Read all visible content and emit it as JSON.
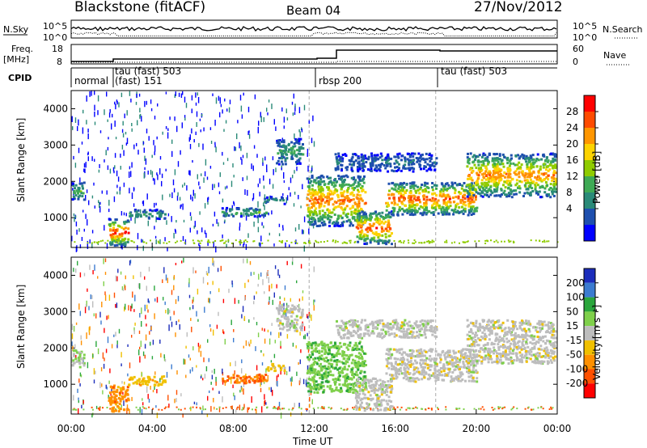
{
  "header": {
    "station": "Blackstone (fitACF)",
    "beam": "Beam 04",
    "date": "27/Nov/2012"
  },
  "noise_panel": {
    "left_label": "N.Sky",
    "right_label": "N.Search",
    "tick_top": "10^5",
    "tick_bottom": "10^0"
  },
  "freq_panel": {
    "left_label": "Freq.",
    "left_unit": "[MHz]",
    "right_label": "Nave",
    "left_ticks": [
      "18",
      "8"
    ],
    "right_ticks": [
      "60",
      "0"
    ]
  },
  "cpid": {
    "label": "CPID",
    "modes": [
      {
        "name": "normal",
        "start": 0.0,
        "end": 2.25
      },
      {
        "name": "tau (fast) 503",
        "start": 2.25,
        "end": 11.75
      },
      {
        "name": "(fast) 151",
        "start": 2.25,
        "end": 11.75
      },
      {
        "name": "rbsp 200",
        "start": 11.75,
        "end": 18.0
      },
      {
        "name": "tau (fast) 503",
        "start": 18.0,
        "end": 24.0
      }
    ]
  },
  "power_colorbar": {
    "label": "Power [dB]",
    "ticks": [
      "28",
      "24",
      "20",
      "16",
      "12",
      "8",
      "4"
    ],
    "colors": [
      "#ff0000",
      "#ff4b00",
      "#ff9600",
      "#fdd300",
      "#8fcc00",
      "#3faa55",
      "#2a8a78",
      "#1e4fae",
      "#0000ff"
    ]
  },
  "velocity_colorbar": {
    "label": "Velocity [m s⁻¹]",
    "ticks": [
      "200",
      "100",
      "50",
      "15",
      "-15",
      "-50",
      "-100",
      "-200"
    ],
    "colors": [
      "#1c2dbb",
      "#3b7bd0",
      "#2aa63c",
      "#7fd04b",
      "#bdbdbd",
      "#f0c000",
      "#ff9000",
      "#ff5000",
      "#ff0000"
    ]
  },
  "xaxis": {
    "label": "Time UT",
    "ticks": [
      "00:00",
      "04:00",
      "08:00",
      "12:00",
      "16:00",
      "20:00",
      "00:00"
    ]
  },
  "chart_data": [
    {
      "type": "heatmap",
      "name": "power",
      "ylabel": "Slant Range [km]",
      "xlim": [
        0,
        24
      ],
      "ylim": [
        180,
        4500
      ],
      "yticks": [
        "4000",
        "3000",
        "2000",
        "1000"
      ],
      "regions": [
        {
          "x0": 0.0,
          "x1": 0.6,
          "y0": 1500,
          "y1": 2000,
          "level": 0.4
        },
        {
          "x0": 1.8,
          "x1": 2.8,
          "y0": 250,
          "y1": 1000,
          "level": 0.95
        },
        {
          "x0": 2.8,
          "x1": 4.6,
          "y0": 1000,
          "y1": 1250,
          "level": 0.35
        },
        {
          "x0": 7.4,
          "x1": 9.6,
          "y0": 1050,
          "y1": 1300,
          "level": 0.4
        },
        {
          "x0": 9.5,
          "x1": 10.5,
          "y0": 1400,
          "y1": 1600,
          "level": 0.3
        },
        {
          "x0": 10.1,
          "x1": 11.4,
          "y0": 2500,
          "y1": 3200,
          "level": 0.35
        },
        {
          "x0": 11.6,
          "x1": 14.5,
          "y0": 800,
          "y1": 2200,
          "level": 0.85
        },
        {
          "x0": 14.0,
          "x1": 15.8,
          "y0": 300,
          "y1": 1200,
          "level": 0.9
        },
        {
          "x0": 15.5,
          "x1": 20.0,
          "y0": 1100,
          "y1": 2000,
          "level": 0.9
        },
        {
          "x0": 19.5,
          "x1": 23.9,
          "y0": 1600,
          "y1": 2800,
          "level": 0.8
        },
        {
          "x0": 13.0,
          "x1": 18.0,
          "y0": 2300,
          "y1": 2800,
          "level": 0.2
        }
      ]
    },
    {
      "type": "heatmap",
      "name": "velocity",
      "ylabel": "Slant Range [km]",
      "xlim": [
        0,
        24
      ],
      "ylim": [
        180,
        4500
      ],
      "yticks": [
        "4000",
        "3000",
        "2000",
        "1000"
      ],
      "regions": [
        {
          "x0": 0.0,
          "x1": 0.6,
          "y0": 1500,
          "y1": 2000,
          "level": 0.1
        },
        {
          "x0": 1.8,
          "x1": 2.8,
          "y0": 250,
          "y1": 1000,
          "level": -0.5
        },
        {
          "x0": 2.8,
          "x1": 4.6,
          "y0": 1000,
          "y1": 1250,
          "level": -0.3
        },
        {
          "x0": 7.4,
          "x1": 9.6,
          "y0": 1050,
          "y1": 1300,
          "level": -0.6
        },
        {
          "x0": 9.5,
          "x1": 10.5,
          "y0": 1400,
          "y1": 1600,
          "level": -0.2
        },
        {
          "x0": 10.1,
          "x1": 11.4,
          "y0": 2500,
          "y1": 3200,
          "level": 0.0
        },
        {
          "x0": 11.6,
          "x1": 14.5,
          "y0": 800,
          "y1": 2200,
          "level": 0.3
        },
        {
          "x0": 14.0,
          "x1": 15.8,
          "y0": 300,
          "y1": 1200,
          "level": 0.0
        },
        {
          "x0": 15.5,
          "x1": 20.0,
          "y0": 1100,
          "y1": 2000,
          "level": 0.0
        },
        {
          "x0": 19.5,
          "x1": 23.9,
          "y0": 1600,
          "y1": 2800,
          "level": 0.0
        },
        {
          "x0": 13.0,
          "x1": 18.0,
          "y0": 2300,
          "y1": 2800,
          "level": 0.0
        }
      ]
    }
  ]
}
